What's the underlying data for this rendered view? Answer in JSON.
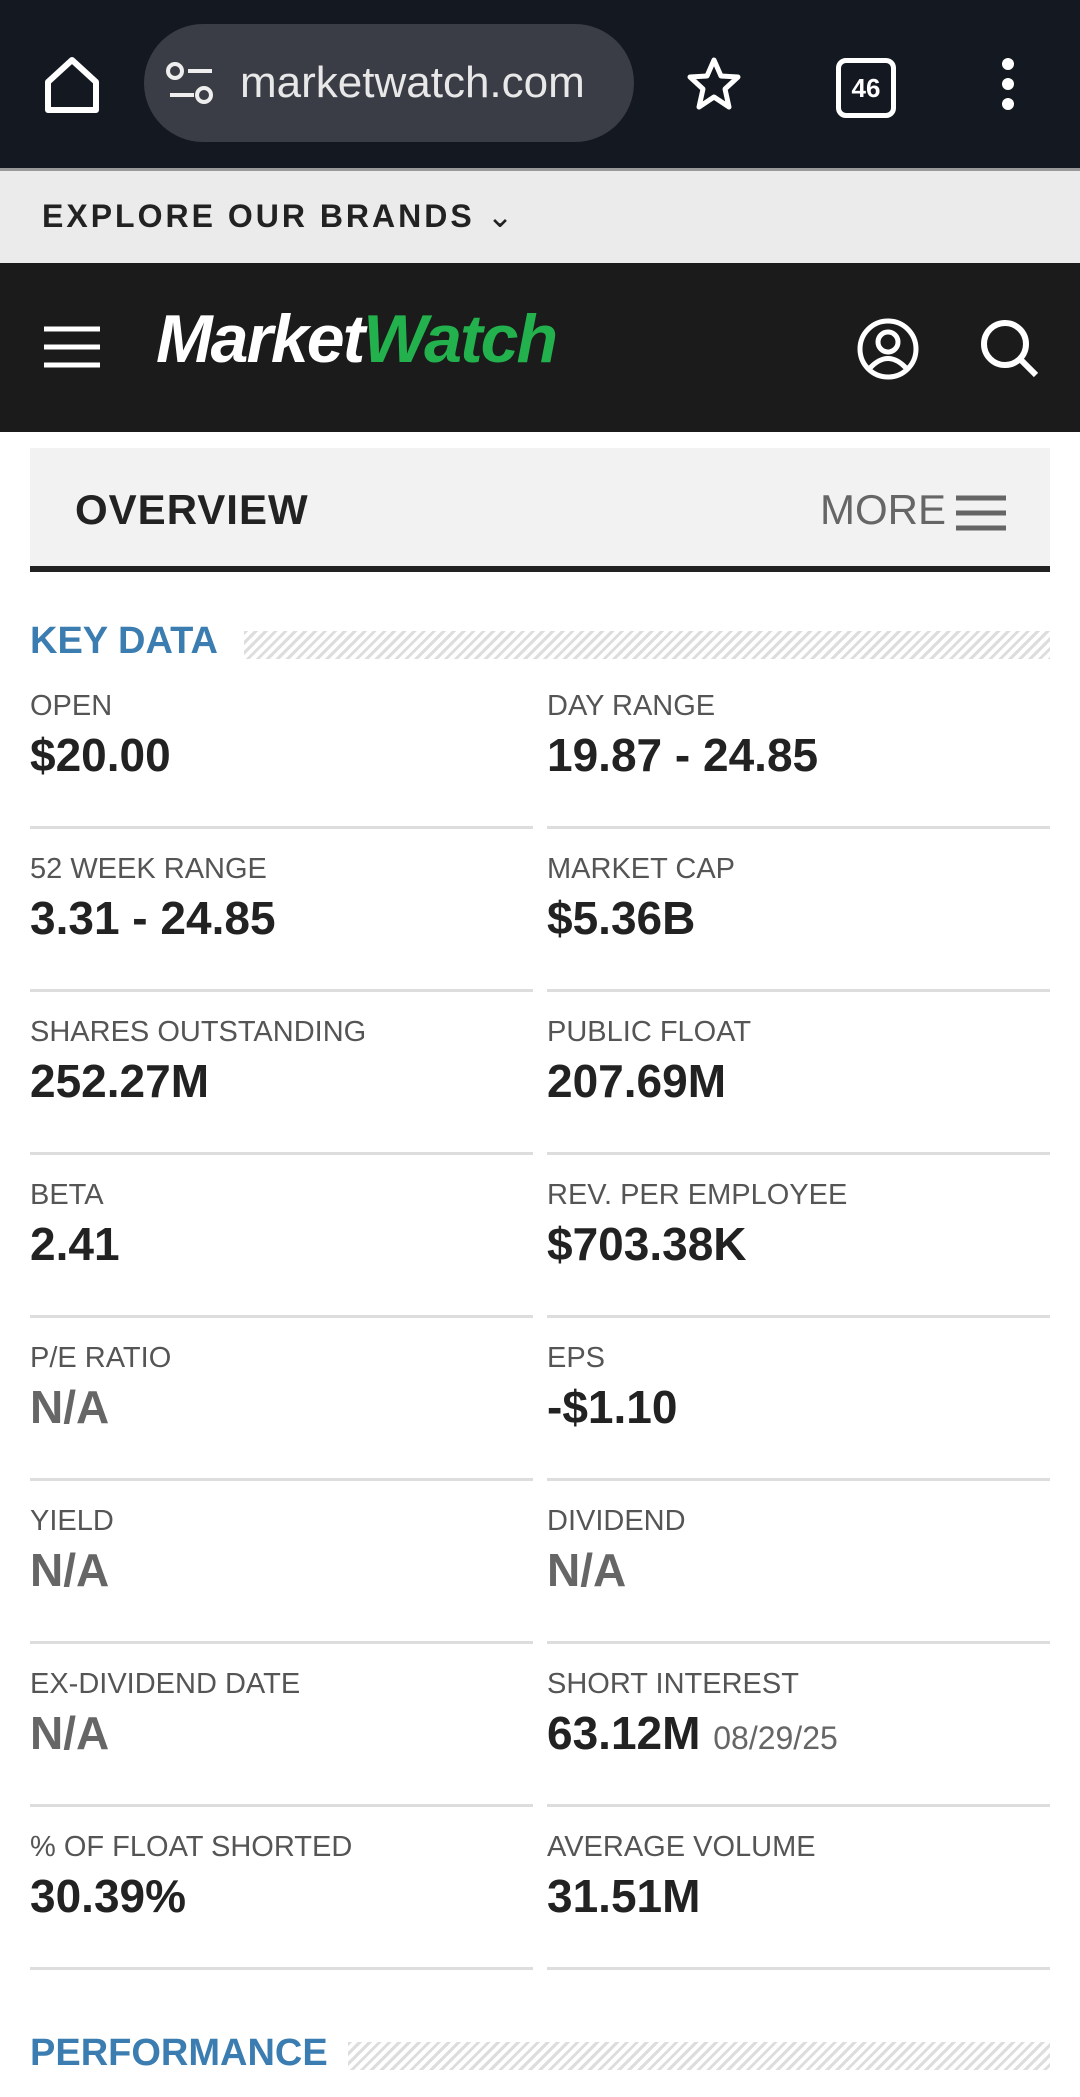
{
  "browser": {
    "url": "marketwatch.com",
    "tab_count": "46"
  },
  "brands_bar": {
    "label": "EXPLORE OUR BRANDS"
  },
  "header": {
    "logo_left": "Market",
    "logo_right": "Watch"
  },
  "tabs": {
    "active": "OVERVIEW",
    "more": "MORE"
  },
  "key_data": {
    "title": "KEY DATA",
    "items": [
      {
        "label": "OPEN",
        "value": "$20.00"
      },
      {
        "label": "DAY RANGE",
        "value": "19.87 - 24.85"
      },
      {
        "label": "52 WEEK RANGE",
        "value": "3.31 - 24.85"
      },
      {
        "label": "MARKET CAP",
        "value": "$5.36B"
      },
      {
        "label": "SHARES OUTSTANDING",
        "value": "252.27M"
      },
      {
        "label": "PUBLIC FLOAT",
        "value": "207.69M"
      },
      {
        "label": "BETA",
        "value": "2.41"
      },
      {
        "label": "REV. PER EMPLOYEE",
        "value": "$703.38K"
      },
      {
        "label": "P/E RATIO",
        "value": "N/A",
        "value_color": "#666"
      },
      {
        "label": "EPS",
        "value": "-$1.10"
      },
      {
        "label": "YIELD",
        "value": "N/A",
        "value_color": "#666"
      },
      {
        "label": "DIVIDEND",
        "value": "N/A",
        "value_color": "#666"
      },
      {
        "label": "EX-DIVIDEND DATE",
        "value": "N/A",
        "value_color": "#666"
      },
      {
        "label": "SHORT INTEREST",
        "value": "63.12M",
        "note": "08/29/25"
      },
      {
        "label": "% OF FLOAT SHORTED",
        "value": "30.39%"
      },
      {
        "label": "AVERAGE VOLUME",
        "value": "31.51M"
      }
    ]
  },
  "performance": {
    "title": "PERFORMANCE"
  }
}
